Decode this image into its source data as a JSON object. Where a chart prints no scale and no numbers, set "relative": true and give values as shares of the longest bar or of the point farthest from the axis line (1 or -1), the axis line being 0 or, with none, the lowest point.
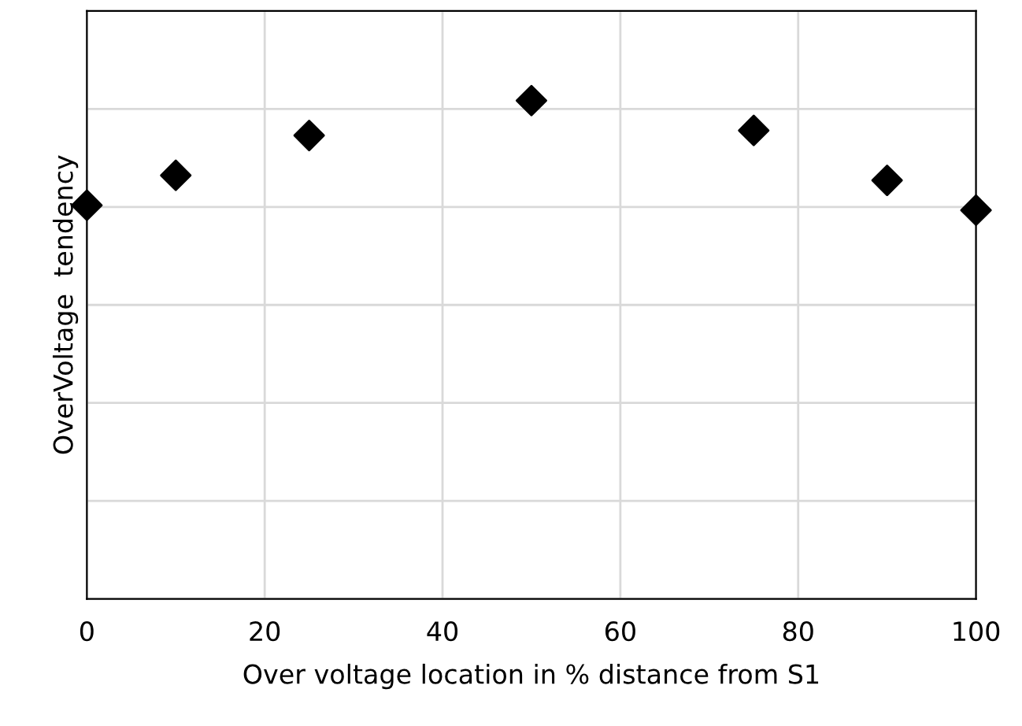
{
  "chart_data": {
    "type": "scatter",
    "xlabel": "Over voltage location in % distance from S1",
    "ylabel": "OverVoltage  tendency",
    "x": [
      0,
      10,
      25,
      50,
      75,
      90,
      100
    ],
    "series": [
      {
        "color": "#000000",
        "values": [
          0.79,
          0.85,
          0.93,
          1,
          0.94,
          0.84,
          0.78
        ]
      }
    ],
    "relative": true,
    "xlim": [
      0,
      100
    ],
    "xticks": [
      0,
      20,
      40,
      60,
      80,
      100
    ],
    "grid": true,
    "marker": "diamond",
    "legend": false
  }
}
